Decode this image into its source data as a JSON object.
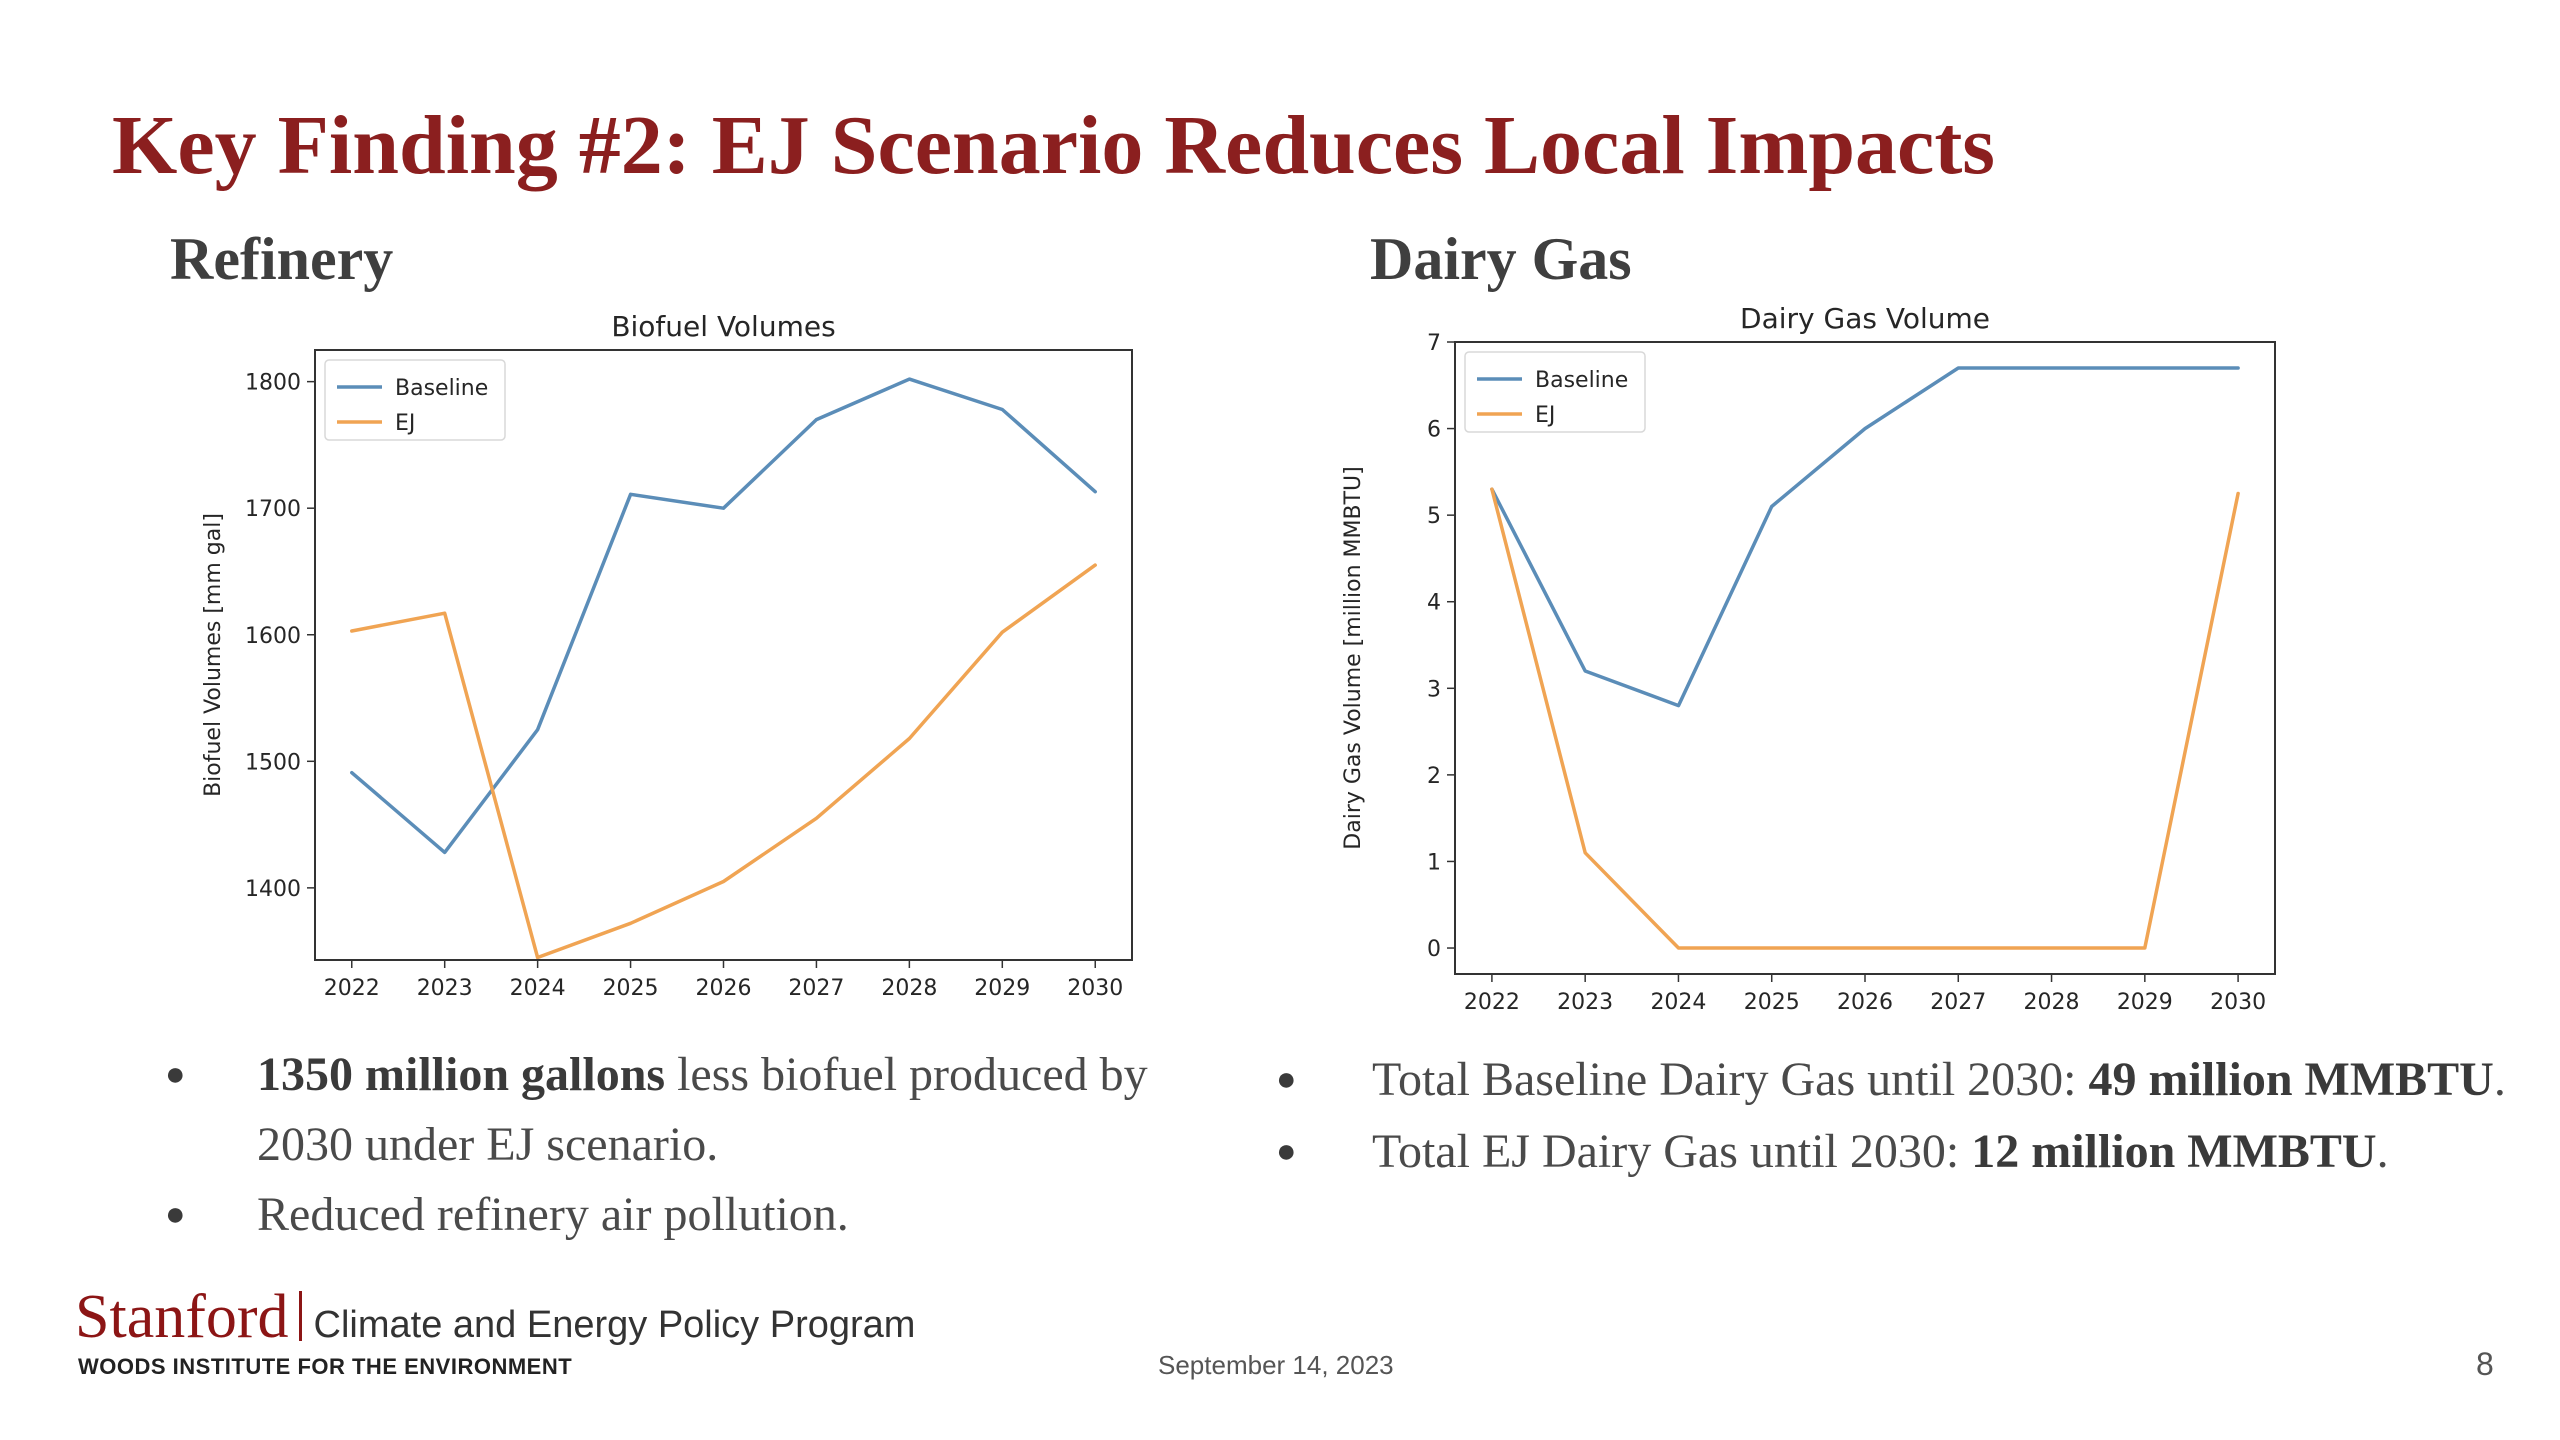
{
  "slide": {
    "title": "Key Finding #2: EJ Scenario Reduces Local Impacts",
    "left_heading": "Refinery",
    "right_heading": "Dairy Gas",
    "date": "September 14, 2023",
    "page_number": "8"
  },
  "bullets_left": [
    {
      "bold": "1350 million gallons",
      "text": " less biofuel produced by 2030 under EJ scenario."
    },
    {
      "bold": "",
      "text": "Reduced refinery air pollution."
    }
  ],
  "bullets_right": [
    {
      "text": "Total Baseline Dairy Gas  until 2030: ",
      "bold": "49 million MMBTU",
      "tail": "."
    },
    {
      "text": "Total EJ Dairy Gas until 2030: ",
      "bold": "12 million MMBTU",
      "tail": "."
    }
  ],
  "footer": {
    "logo": "Stanford",
    "program": "Climate and Energy Policy Program",
    "institute": "WOODS INSTITUTE FOR THE ENVIRONMENT"
  },
  "colors": {
    "baseline": "#5b8db8",
    "ej": "#f0a453",
    "title": "#8b1f1f",
    "stanford": "#8c1515"
  },
  "chart_data": [
    {
      "type": "line",
      "title": "Biofuel Volumes",
      "xlabel": "",
      "ylabel": "Biofuel Volumes [mm gal]",
      "x": [
        "2022",
        "2023",
        "2024",
        "2025",
        "2026",
        "2027",
        "2028",
        "2029",
        "2030"
      ],
      "ylim": [
        1343,
        1825
      ],
      "yticks": [
        1400,
        1500,
        1600,
        1700,
        1800
      ],
      "legend": "top-left",
      "series": [
        {
          "name": "Baseline",
          "color": "#5b8db8",
          "values": [
            1491,
            1428,
            1525,
            1711,
            1700,
            1770,
            1802,
            1778,
            1713
          ]
        },
        {
          "name": "EJ",
          "color": "#f0a453",
          "values": [
            1603,
            1617,
            1345,
            1372,
            1405,
            1455,
            1518,
            1602,
            1655
          ]
        }
      ]
    },
    {
      "type": "line",
      "title": "Dairy Gas Volume",
      "xlabel": "",
      "ylabel": "Dairy Gas Volume [million MMBTU]",
      "x": [
        "2022",
        "2023",
        "2024",
        "2025",
        "2026",
        "2027",
        "2028",
        "2029",
        "2030"
      ],
      "ylim": [
        -0.3,
        7
      ],
      "yticks": [
        0,
        1,
        2,
        3,
        4,
        5,
        6,
        7
      ],
      "legend": "top-left",
      "series": [
        {
          "name": "Baseline",
          "color": "#5b8db8",
          "values": [
            5.3,
            3.2,
            2.8,
            5.1,
            6.0,
            6.7,
            6.7,
            6.7,
            6.7
          ]
        },
        {
          "name": "EJ",
          "color": "#f0a453",
          "values": [
            5.3,
            1.1,
            0.0,
            0.0,
            0.0,
            0.0,
            0.0,
            0.0,
            5.25
          ]
        }
      ]
    }
  ]
}
